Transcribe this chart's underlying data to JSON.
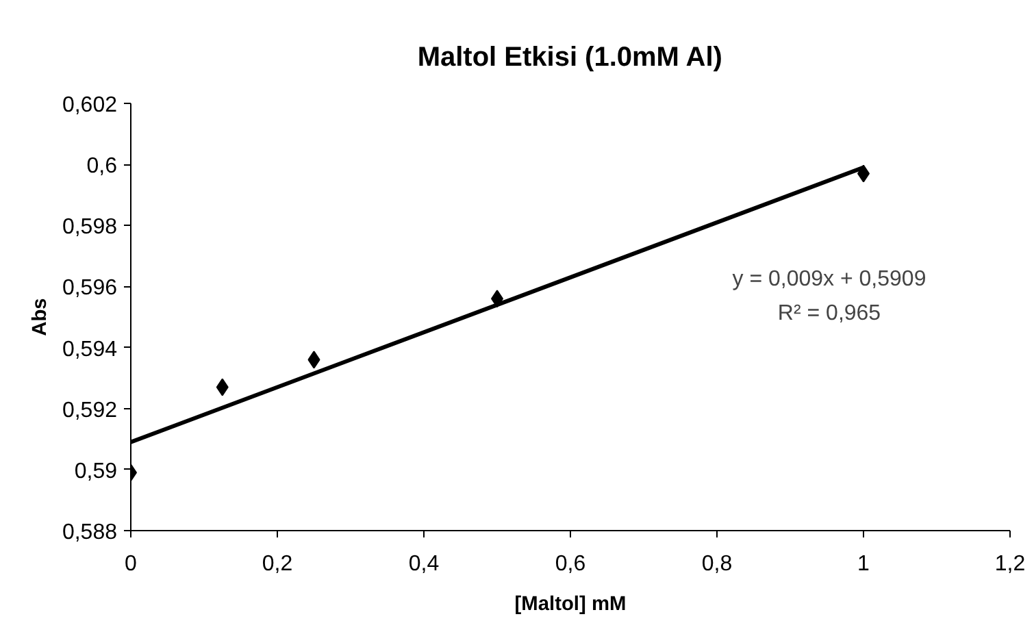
{
  "chart_data": {
    "type": "scatter",
    "title": "Maltol Etkisi (1.0mM Al)",
    "xlabel": "[Maltol] mM",
    "ylabel": "Abs",
    "series": [
      {
        "color": "#000000",
        "marker": "diamond",
        "x": [
          0,
          0.125,
          0.25,
          0.5,
          1
        ],
        "values": [
          0.5899,
          0.5927,
          0.5936,
          0.5956,
          0.5997
        ]
      },
      {
        "type": "line",
        "color": "#000000",
        "line_style": "solid",
        "x": [
          0,
          1
        ],
        "values": [
          0.5909,
          0.5999
        ]
      }
    ],
    "xlim": [
      0,
      1.2
    ],
    "ylim": [
      0.588,
      0.602
    ],
    "xticks": [
      0,
      {
        "value": 0.2,
        "label": "0,2"
      },
      {
        "value": 0.4,
        "label": "0,4"
      },
      {
        "value": 0.6,
        "label": "0,6"
      },
      {
        "value": 0.8,
        "label": "0,8"
      },
      1,
      {
        "value": 1.2,
        "label": "1,2"
      }
    ],
    "yticks": [
      {
        "value": 0.588,
        "label": "0,588"
      },
      {
        "value": 0.59,
        "label": "0,59"
      },
      {
        "value": 0.592,
        "label": "0,592"
      },
      {
        "value": 0.594,
        "label": "0,594"
      },
      {
        "value": 0.596,
        "label": "0,596"
      },
      {
        "value": 0.598,
        "label": "0,598"
      },
      {
        "value": 0.6,
        "label": "0,6"
      },
      {
        "value": 0.602,
        "label": "0,602"
      }
    ],
    "annotations": [
      "y = 0,009x + 0,5909",
      "R² = 0,965"
    ],
    "grid": false
  }
}
